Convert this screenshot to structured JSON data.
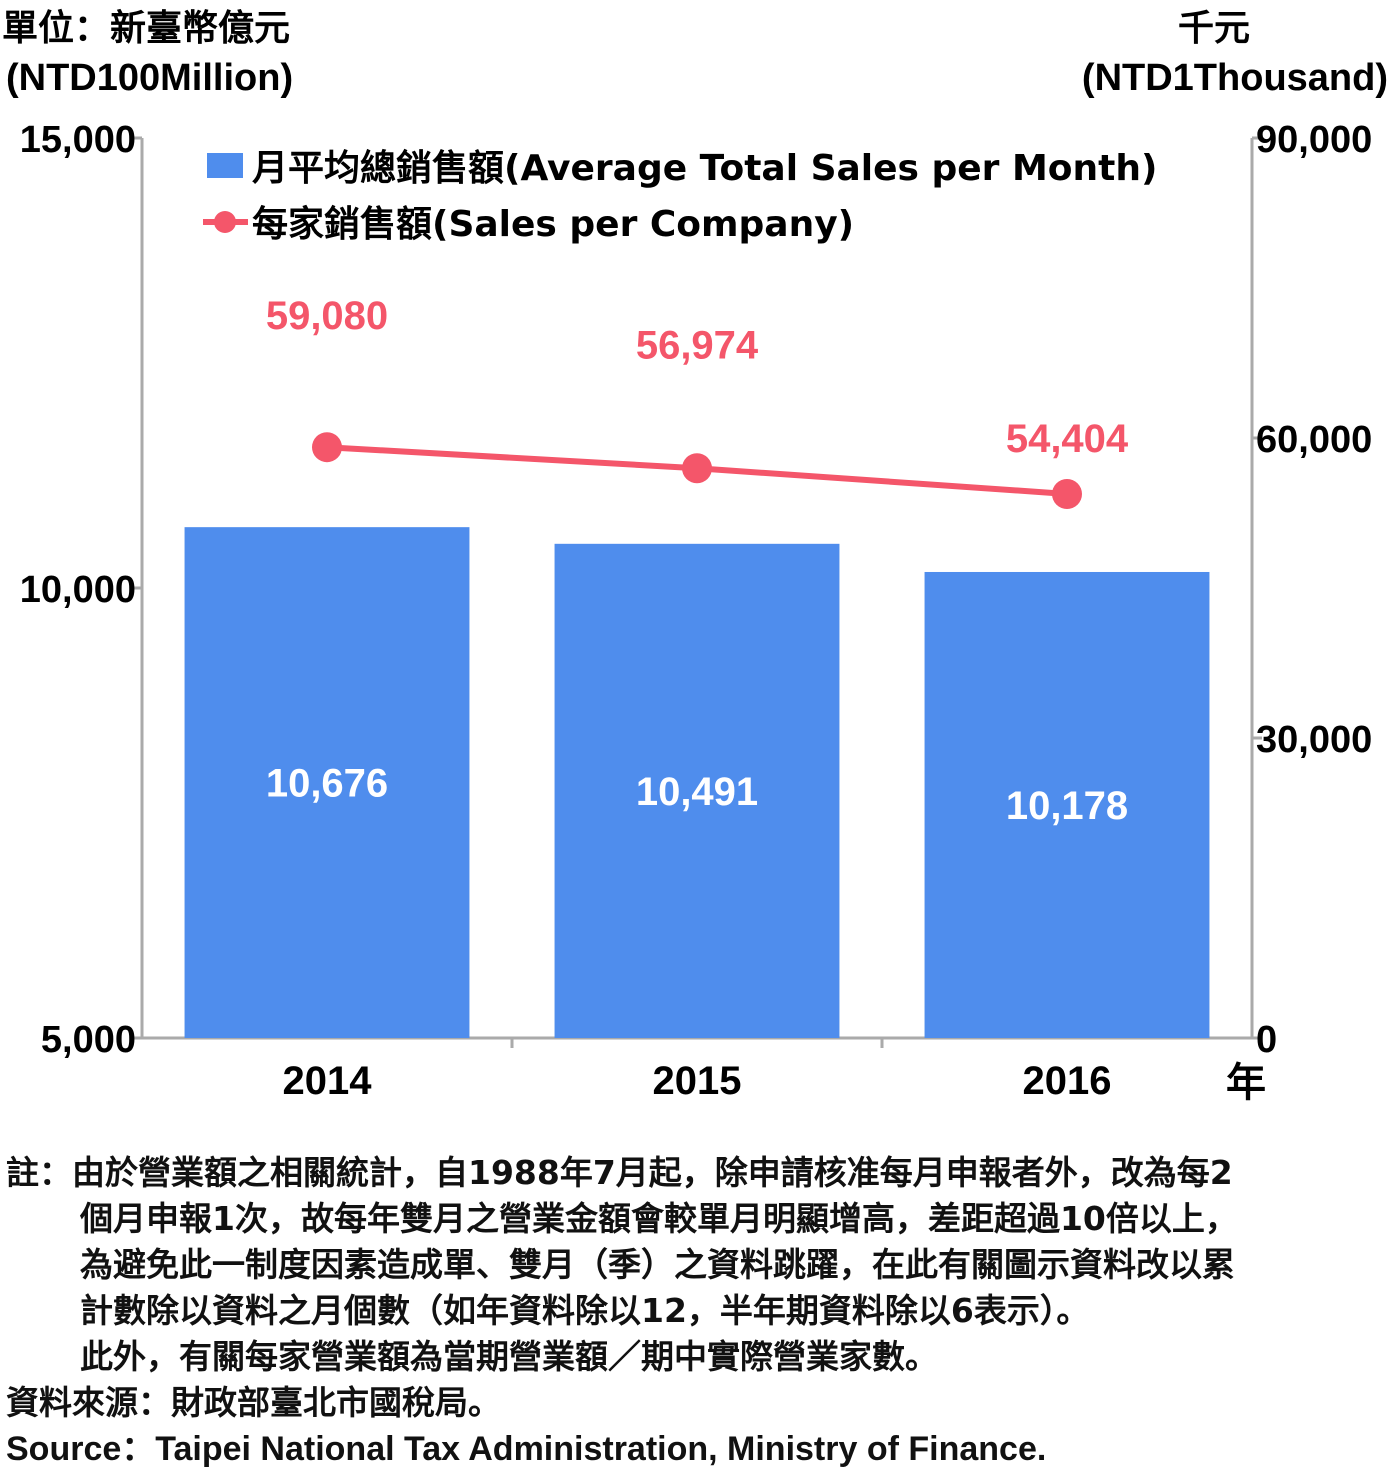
{
  "chart_data": {
    "type": "bar+line",
    "categories": [
      "2014",
      "2015",
      "2016"
    ],
    "left_axis": {
      "unit_zh": "單位：新臺幣億元",
      "unit_en": "(NTD100Million)",
      "range": [
        5000,
        15000
      ],
      "ticks": [
        5000,
        10000,
        15000
      ],
      "tick_labels": [
        "5,000",
        "10,000",
        "15,000"
      ]
    },
    "right_axis": {
      "unit_zh": "千元",
      "unit_en": "(NTD1Thousand)",
      "range": [
        0,
        90000
      ],
      "ticks": [
        0,
        30000,
        60000,
        90000
      ],
      "tick_labels": [
        "0",
        "30,000",
        "60,000",
        "90,000"
      ]
    },
    "x_axis_unit": "年",
    "series": [
      {
        "name": "月平均總銷售額(Average Total Sales per Month)",
        "type": "bar",
        "axis": "left",
        "color": "#4f8ded",
        "values": [
          10676,
          10491,
          10178
        ],
        "labels": [
          "10,676",
          "10,491",
          "10,178"
        ]
      },
      {
        "name": "每家銷售額(Sales per Company)",
        "type": "line",
        "axis": "right",
        "color": "#f4566a",
        "values": [
          59080,
          56974,
          54404
        ],
        "labels": [
          "59,080",
          "56,974",
          "54,404"
        ]
      }
    ],
    "legend_position": "top-left"
  },
  "notes": [
    "註：由於營業額之相關統計，自1988年7月起，除申請核准每月申報者外，改為每2",
    "個月申報1次，故每年雙月之營業金額會較單月明顯增高，差距超過10倍以上，",
    "為避免此一制度因素造成單、雙月（季）之資料跳躍，在此有關圖示資料改以累",
    "計數除以資料之月個數（如年資料除以12，半年期資料除以6表示）。",
    "此外，有關每家營業額為當期營業額／期中實際營業家數。"
  ],
  "source_zh": "資料來源：財政部臺北市國稅局。",
  "source_en": "Source：Taipei National Tax Administration, Ministry of Finance."
}
